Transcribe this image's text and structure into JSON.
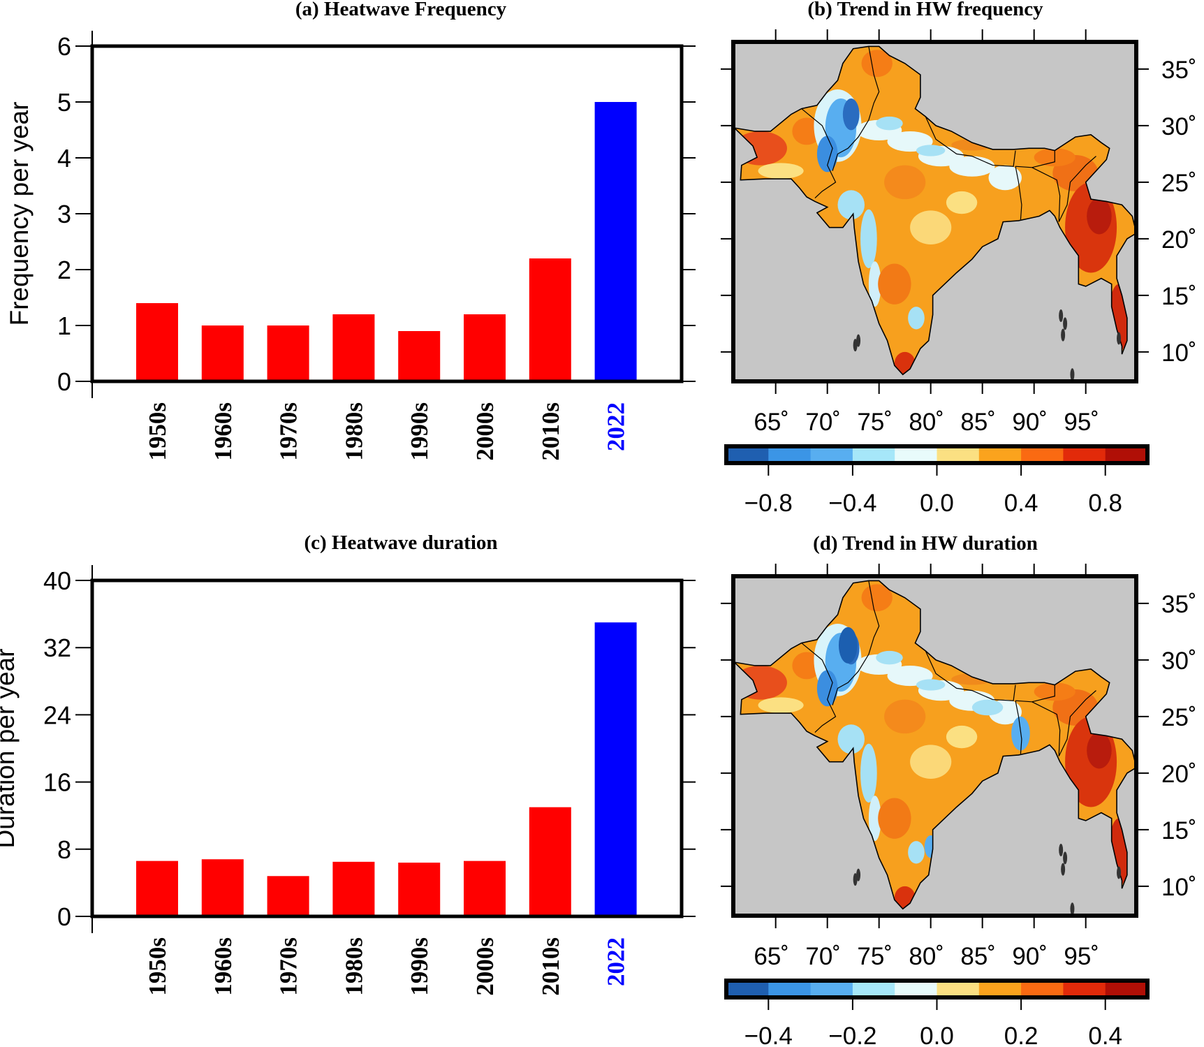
{
  "chart_data": [
    {
      "type": "bar",
      "panel": "a",
      "title": "(a) Heatwave Frequency",
      "xlabel": "",
      "ylabel": "Frequency per year",
      "ylim": [
        0,
        6
      ],
      "yticks": [
        "0",
        "1",
        "2",
        "3",
        "4",
        "5",
        "6"
      ],
      "categories": [
        "1950s",
        "1960s",
        "1970s",
        "1980s",
        "1990s",
        "2000s",
        "2010s",
        "2022"
      ],
      "values": [
        1.4,
        1.0,
        1.0,
        1.2,
        0.9,
        1.2,
        2.2,
        5.0
      ],
      "bar_colors": [
        "#ff0000",
        "#ff0000",
        "#ff0000",
        "#ff0000",
        "#ff0000",
        "#ff0000",
        "#ff0000",
        "#0000ff"
      ],
      "label_colors": [
        "#000000",
        "#000000",
        "#000000",
        "#000000",
        "#000000",
        "#000000",
        "#000000",
        "#0000ff"
      ]
    },
    {
      "type": "heatmap",
      "panel": "b",
      "title": "(b) Trend in HW frequency",
      "lon_ticks": [
        "65˚",
        "70˚",
        "75˚",
        "80˚",
        "85˚",
        "90˚",
        "95˚"
      ],
      "lat_ticks": [
        "35˚",
        "30˚",
        "25˚",
        "20˚",
        "15˚",
        "10˚"
      ],
      "colorbar": {
        "range": [
          -1.0,
          1.0
        ],
        "tick_labels": [
          "−0.8",
          "−0.4",
          "0.0",
          "0.4",
          "0.8"
        ],
        "colors": [
          "#1f5fb0",
          "#3b95e6",
          "#58aef0",
          "#a6e7f9",
          "#e8fbfb",
          "#fbe082",
          "#fba31d",
          "#fa6a12",
          "#e22a0a",
          "#b00f06"
        ]
      }
    },
    {
      "type": "bar",
      "panel": "c",
      "title": "(c) Heatwave duration",
      "xlabel": "",
      "ylabel": "Duration per year",
      "ylim": [
        0,
        40
      ],
      "yticks": [
        "0",
        "8",
        "16",
        "24",
        "32",
        "40"
      ],
      "categories": [
        "1950s",
        "1960s",
        "1970s",
        "1980s",
        "1990s",
        "2000s",
        "2010s",
        "2022"
      ],
      "values": [
        6.6,
        6.8,
        4.8,
        6.5,
        6.4,
        6.6,
        13.0,
        35.0
      ],
      "bar_colors": [
        "#ff0000",
        "#ff0000",
        "#ff0000",
        "#ff0000",
        "#ff0000",
        "#ff0000",
        "#ff0000",
        "#0000ff"
      ],
      "label_colors": [
        "#000000",
        "#000000",
        "#000000",
        "#000000",
        "#000000",
        "#000000",
        "#000000",
        "#0000ff"
      ]
    },
    {
      "type": "heatmap",
      "panel": "d",
      "title": "(d) Trend in HW duration",
      "lon_ticks": [
        "65˚",
        "70˚",
        "75˚",
        "80˚",
        "85˚",
        "90˚",
        "95˚"
      ],
      "lat_ticks": [
        "35˚",
        "30˚",
        "25˚",
        "20˚",
        "15˚",
        "10˚"
      ],
      "colorbar": {
        "range": [
          -0.5,
          0.5
        ],
        "tick_labels": [
          "−0.4",
          "−0.2",
          "0.0",
          "0.2",
          "0.4"
        ],
        "colors": [
          "#1f5fb0",
          "#3b95e6",
          "#58aef0",
          "#a6e7f9",
          "#e8fbfb",
          "#fbe082",
          "#fba31d",
          "#fa6a12",
          "#e22a0a",
          "#b00f06"
        ]
      }
    }
  ]
}
